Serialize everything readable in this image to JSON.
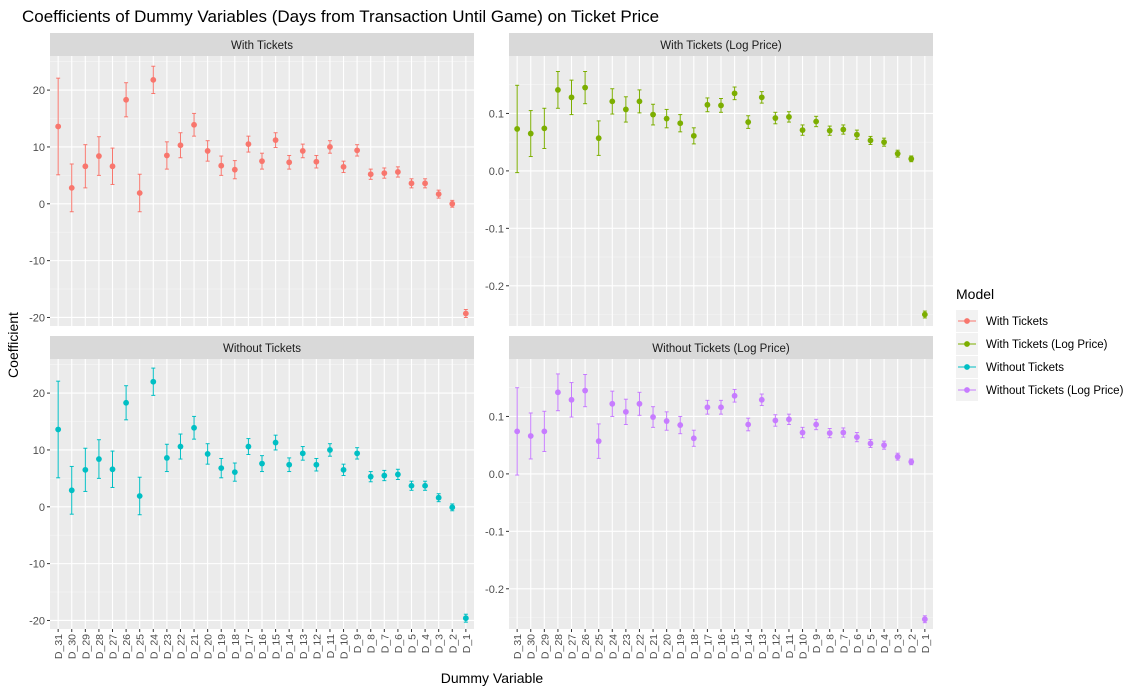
{
  "chart_data": {
    "type": "scatter",
    "title": "Coefficients of Dummy Variables (Days from Transaction Until Game) on Ticket Price",
    "xlabel": "Dummy Variable",
    "ylabel": "Coefficient",
    "categories": [
      "D_31",
      "D_30",
      "D_29",
      "D_28",
      "D_27",
      "D_26",
      "D_25",
      "D_24",
      "D_23",
      "D_22",
      "D_21",
      "D_20",
      "D_19",
      "D_18",
      "D_17",
      "D_16",
      "D_15",
      "D_14",
      "D_13",
      "D_12",
      "D_11",
      "D_10",
      "D_9",
      "D_8",
      "D_7",
      "D_6",
      "D_5",
      "D_4",
      "D_3",
      "D_2",
      "D_1"
    ],
    "legend": {
      "title": "Model",
      "placement": "right",
      "items": [
        {
          "label": "With Tickets",
          "color": "#F8766D"
        },
        {
          "label": "With Tickets (Log Price)",
          "color": "#7CAE00"
        },
        {
          "label": "Without Tickets",
          "color": "#00BFC4"
        },
        {
          "label": "Without Tickets (Log Price)",
          "color": "#C77CFF"
        }
      ]
    },
    "panels": [
      {
        "strip": "With Tickets",
        "color": "#F8766D",
        "ylim": [
          -21.5,
          26
        ],
        "yticks": [
          -20,
          -10,
          0,
          10,
          20
        ],
        "ytick_labels": [
          "-20",
          "-10",
          "0",
          "10",
          "20"
        ],
        "values": [
          13.6,
          2.8,
          6.6,
          8.4,
          6.6,
          18.3,
          1.9,
          21.8,
          8.5,
          10.3,
          13.9,
          9.3,
          6.7,
          6.0,
          10.5,
          7.5,
          11.2,
          7.3,
          9.3,
          7.4,
          10.0,
          6.5,
          9.4,
          5.2,
          5.4,
          5.6,
          3.6,
          3.6,
          1.7,
          0.0,
          -19.3
        ],
        "errors": [
          8.5,
          4.2,
          3.8,
          3.4,
          3.2,
          3.0,
          3.3,
          2.4,
          2.4,
          2.2,
          2.0,
          1.8,
          1.7,
          1.6,
          1.4,
          1.4,
          1.3,
          1.2,
          1.2,
          1.1,
          1.1,
          1.0,
          1.0,
          0.9,
          0.9,
          0.9,
          0.8,
          0.8,
          0.7,
          0.6,
          0.7
        ]
      },
      {
        "strip": "With Tickets (Log Price)",
        "color": "#7CAE00",
        "ylim": [
          -0.27,
          0.2
        ],
        "yticks": [
          -0.2,
          -0.1,
          0.0,
          0.1
        ],
        "ytick_labels": [
          "-0.2",
          "-0.1",
          "0.0",
          "0.1"
        ],
        "values": [
          0.073,
          0.065,
          0.074,
          0.141,
          0.128,
          0.145,
          0.057,
          0.121,
          0.107,
          0.121,
          0.098,
          0.091,
          0.083,
          0.061,
          0.115,
          0.114,
          0.135,
          0.085,
          0.128,
          0.092,
          0.094,
          0.071,
          0.086,
          0.07,
          0.072,
          0.063,
          0.053,
          0.05,
          0.03,
          0.021,
          -0.25
        ],
        "errors": [
          0.076,
          0.04,
          0.035,
          0.032,
          0.03,
          0.028,
          0.03,
          0.022,
          0.022,
          0.02,
          0.018,
          0.016,
          0.015,
          0.014,
          0.012,
          0.012,
          0.011,
          0.011,
          0.01,
          0.01,
          0.009,
          0.009,
          0.009,
          0.008,
          0.008,
          0.008,
          0.007,
          0.007,
          0.006,
          0.005,
          0.006
        ]
      },
      {
        "strip": "Without Tickets",
        "color": "#00BFC4",
        "ylim": [
          -21.5,
          26
        ],
        "yticks": [
          -20,
          -10,
          0,
          10,
          20
        ],
        "ytick_labels": [
          "-20",
          "-10",
          "0",
          "10",
          "20"
        ],
        "values": [
          13.6,
          2.9,
          6.5,
          8.4,
          6.6,
          18.3,
          1.9,
          22.0,
          8.6,
          10.6,
          13.9,
          9.3,
          6.8,
          6.1,
          10.6,
          7.6,
          11.3,
          7.4,
          9.4,
          7.4,
          10.0,
          6.5,
          9.4,
          5.3,
          5.5,
          5.7,
          3.7,
          3.7,
          1.6,
          -0.1,
          -19.6
        ],
        "errors": [
          8.5,
          4.2,
          3.8,
          3.4,
          3.2,
          3.0,
          3.3,
          2.4,
          2.4,
          2.2,
          2.0,
          1.8,
          1.7,
          1.6,
          1.4,
          1.4,
          1.3,
          1.2,
          1.2,
          1.1,
          1.1,
          1.0,
          1.0,
          0.9,
          0.9,
          0.9,
          0.8,
          0.8,
          0.7,
          0.6,
          0.7
        ]
      },
      {
        "strip": "Without Tickets (Log Price)",
        "color": "#C77CFF",
        "ylim": [
          -0.27,
          0.2
        ],
        "yticks": [
          -0.2,
          -0.1,
          0.0,
          0.1
        ],
        "ytick_labels": [
          "-0.2",
          "-0.1",
          "0.0",
          "0.1"
        ],
        "values": [
          0.074,
          0.066,
          0.074,
          0.142,
          0.129,
          0.145,
          0.057,
          0.122,
          0.108,
          0.122,
          0.099,
          0.092,
          0.085,
          0.062,
          0.116,
          0.116,
          0.136,
          0.086,
          0.129,
          0.093,
          0.095,
          0.072,
          0.086,
          0.071,
          0.072,
          0.064,
          0.053,
          0.05,
          0.03,
          0.021,
          -0.253
        ],
        "errors": [
          0.076,
          0.04,
          0.035,
          0.032,
          0.03,
          0.028,
          0.03,
          0.022,
          0.022,
          0.02,
          0.018,
          0.016,
          0.015,
          0.014,
          0.012,
          0.012,
          0.011,
          0.011,
          0.01,
          0.01,
          0.009,
          0.009,
          0.009,
          0.008,
          0.008,
          0.008,
          0.007,
          0.007,
          0.006,
          0.005,
          0.006
        ]
      }
    ],
    "grid": true
  }
}
